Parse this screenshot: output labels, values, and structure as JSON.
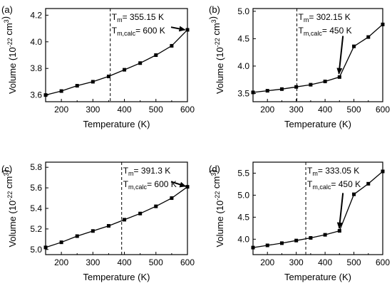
{
  "chart_data": [
    {
      "type": "line",
      "panel_label": "(a)",
      "xlabel": "Temperature (K)",
      "ylabel": {
        "prefix": "Volume (10",
        "exp": "-22",
        "mid": " cm",
        "exp2": "3",
        "suffix": ")"
      },
      "xlim": [
        150,
        600
      ],
      "ylim": [
        3.55,
        4.25
      ],
      "xticks": [
        200,
        300,
        400,
        500,
        600
      ],
      "yticks": [
        3.6,
        3.8,
        4.0,
        4.2
      ],
      "ytick_labels": [
        "3.6",
        "3.8",
        "4.0",
        "4.2"
      ],
      "x": [
        150,
        200,
        250,
        300,
        350,
        400,
        450,
        500,
        550,
        600
      ],
      "y": [
        3.6,
        3.63,
        3.67,
        3.7,
        3.74,
        3.79,
        3.84,
        3.9,
        3.97,
        4.09
      ],
      "tm_line_x": 355.15,
      "tm_text": {
        "main": "T",
        "sub": "m",
        "value": "= 355.15 K"
      },
      "tmcalc_text": {
        "main": "T",
        "sub": "m,calc",
        "value": "= 600 K"
      },
      "arrow": {
        "from": [
          548,
          4.11
        ],
        "to": [
          592,
          4.09
        ]
      }
    },
    {
      "type": "line",
      "panel_label": "(b)",
      "xlabel": "Temperature (K)",
      "ylabel": {
        "prefix": "Volume (10",
        "exp": "-22",
        "mid": " cm",
        "exp2": "3",
        "suffix": ")"
      },
      "xlim": [
        150,
        600
      ],
      "ylim": [
        3.35,
        5.05
      ],
      "xticks": [
        200,
        300,
        400,
        500,
        600
      ],
      "yticks": [
        3.5,
        4.0,
        4.5,
        5.0
      ],
      "ytick_labels": [
        "3.5",
        "4.0",
        "4.5",
        "5.0"
      ],
      "x": [
        150,
        200,
        250,
        300,
        350,
        400,
        450,
        500,
        550,
        600
      ],
      "y": [
        3.52,
        3.55,
        3.58,
        3.62,
        3.66,
        3.72,
        3.8,
        4.36,
        4.53,
        4.76
      ],
      "tm_line_x": 302.15,
      "tm_text": {
        "main": "T",
        "sub": "m",
        "value": "= 302.15 K"
      },
      "tmcalc_text": {
        "main": "T",
        "sub": "m,calc",
        "value": "= 450 K"
      },
      "arrow": {
        "from": [
          462,
          4.55
        ],
        "to": [
          448,
          3.86
        ]
      }
    },
    {
      "type": "line",
      "panel_label": "(c)",
      "xlabel": "Temperature (K)",
      "ylabel": {
        "prefix": "Volume (10",
        "exp": "-22",
        "mid": " cm",
        "exp2": "3",
        "suffix": ")"
      },
      "xlim": [
        150,
        600
      ],
      "ylim": [
        4.95,
        5.85
      ],
      "xticks": [
        200,
        300,
        400,
        500,
        600
      ],
      "yticks": [
        5.0,
        5.2,
        5.4,
        5.6,
        5.8
      ],
      "ytick_labels": [
        "5.0",
        "5.2",
        "5.4",
        "5.6",
        "5.8"
      ],
      "x": [
        150,
        200,
        250,
        300,
        350,
        400,
        450,
        500,
        550,
        600
      ],
      "y": [
        5.02,
        5.07,
        5.13,
        5.18,
        5.23,
        5.29,
        5.35,
        5.42,
        5.5,
        5.61
      ],
      "tm_line_x": 391.3,
      "tm_text": {
        "main": "T",
        "sub": "m",
        "value": "= 391.3 K"
      },
      "tmcalc_text": {
        "main": "T",
        "sub": "m,calc",
        "value": "= 600 K"
      },
      "arrow": {
        "from": [
          548,
          5.66
        ],
        "to": [
          594,
          5.615
        ]
      }
    },
    {
      "type": "line",
      "panel_label": "(d)",
      "xlabel": "Temperature (K)",
      "ylabel": {
        "prefix": "Volume (10",
        "exp": "-22",
        "mid": " cm",
        "exp2": "3",
        "suffix": ")"
      },
      "xlim": [
        150,
        600
      ],
      "ylim": [
        3.65,
        5.75
      ],
      "xticks": [
        200,
        300,
        400,
        500,
        600
      ],
      "yticks": [
        4.0,
        4.5,
        5.0,
        5.5
      ],
      "ytick_labels": [
        "4.0",
        "4.5",
        "5.0",
        "5.5"
      ],
      "x": [
        150,
        200,
        250,
        300,
        350,
        400,
        450,
        500,
        550,
        600
      ],
      "y": [
        3.81,
        3.86,
        3.91,
        3.97,
        4.03,
        4.1,
        4.19,
        5.02,
        5.26,
        5.54
      ],
      "tm_line_x": 333.05,
      "tm_text": {
        "main": "T",
        "sub": "m",
        "value": "= 333.05 K"
      },
      "tmcalc_text": {
        "main": "T",
        "sub": "m,calc",
        "value": "= 450 K"
      },
      "arrow": {
        "from": [
          462,
          5.05
        ],
        "to": [
          449,
          4.25
        ]
      }
    }
  ]
}
